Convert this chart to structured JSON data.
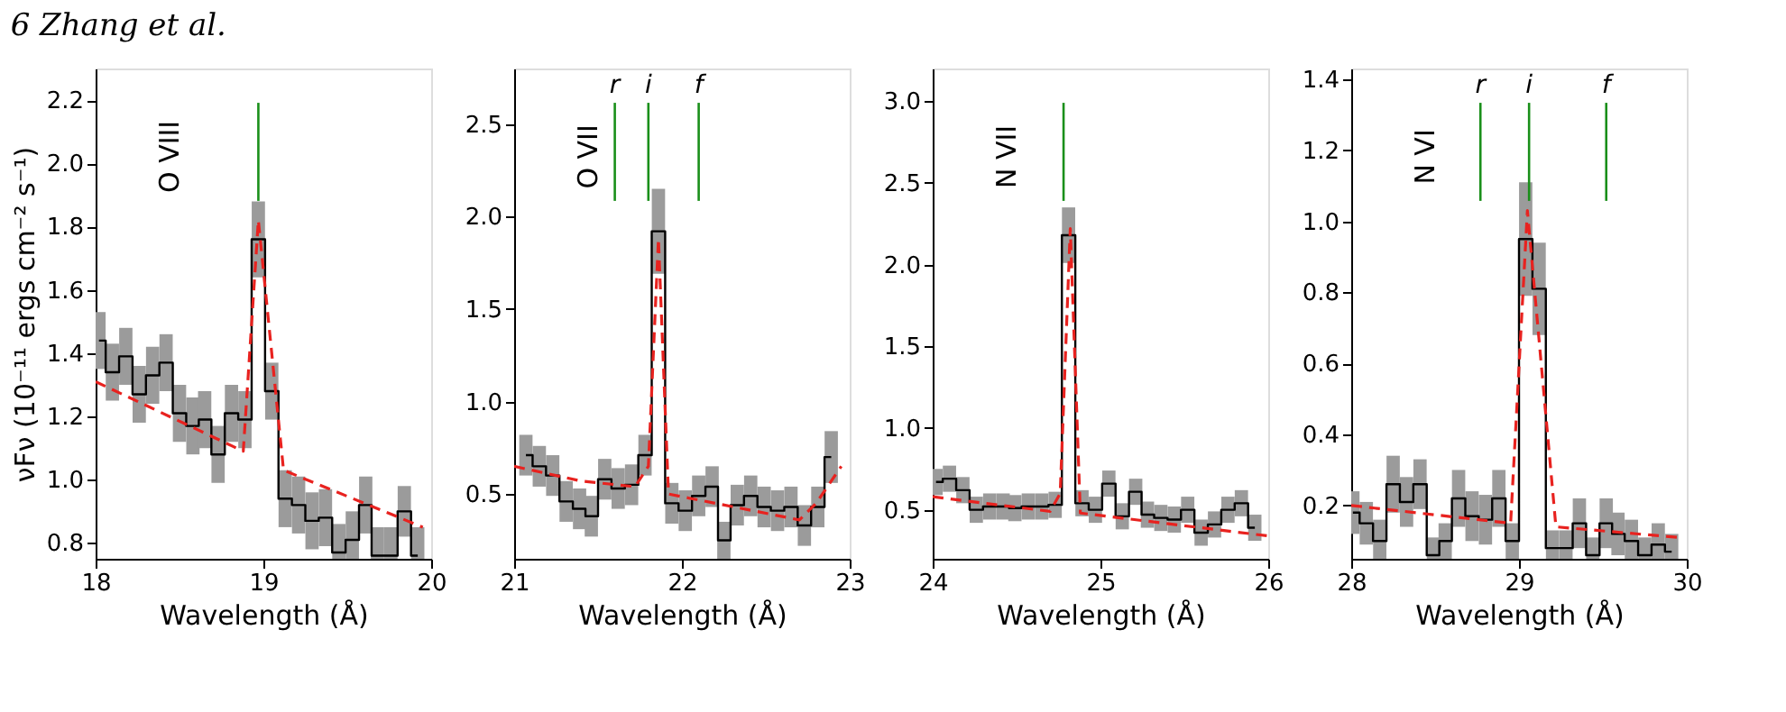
{
  "chart_data": [
    {
      "type": "step",
      "title": "6 Zhang et al.",
      "xlabel": "Wavelength (Å)",
      "ylabel": "νFν (10⁻¹¹ ergs cm⁻² s⁻¹)",
      "xlim": [
        18,
        20
      ],
      "xticks": [
        18,
        19,
        20
      ],
      "ylim": [
        0.75,
        2.3
      ],
      "yticks": [
        0.8,
        {
          "value": 1.0,
          "label": "1.0"
        },
        1.2,
        1.4,
        1.6,
        1.8,
        {
          "value": 2.0,
          "label": "2.0"
        },
        2.2
      ],
      "annotations": [
        "O VIII"
      ],
      "series": [
        {
          "type": "step",
          "color": "#000000",
          "x": [
            18.02,
            18.1,
            18.18,
            18.26,
            18.34,
            18.42,
            18.5,
            18.58,
            18.65,
            18.73,
            18.81,
            18.89,
            18.97,
            19.05,
            19.13,
            19.21,
            19.29,
            19.37,
            19.45,
            19.53,
            19.61,
            19.68,
            19.76,
            19.84,
            19.92
          ],
          "values": [
            1.44,
            1.34,
            1.39,
            1.27,
            1.33,
            1.37,
            1.21,
            1.17,
            1.19,
            1.08,
            1.21,
            1.19,
            1.76,
            1.28,
            0.94,
            0.92,
            0.87,
            0.88,
            0.77,
            0.81,
            0.92,
            0.76,
            0.76,
            0.9,
            0.76
          ],
          "errors": [
            0.09,
            0.09,
            0.09,
            0.09,
            0.09,
            0.09,
            0.09,
            0.09,
            0.09,
            0.09,
            0.09,
            0.09,
            0.12,
            0.09,
            0.09,
            0.09,
            0.09,
            0.09,
            0.09,
            0.09,
            0.09,
            0.09,
            0.09,
            0.08,
            0.09
          ]
        },
        {
          "type": "line",
          "color": "#e8221f",
          "line_style": "dashed",
          "x": [
            18.0,
            18.88,
            18.97,
            19.12,
            19.95
          ],
          "values": [
            1.31,
            1.09,
            1.82,
            1.03,
            0.85
          ]
        }
      ],
      "ref_lines": [
        {
          "axis": "x",
          "value": 18.97,
          "label": null,
          "color": "#1a8f1a"
        }
      ]
    },
    {
      "type": "step",
      "xlabel": "Wavelength (Å)",
      "xlim": [
        21,
        23
      ],
      "xticks": [
        21,
        22,
        23
      ],
      "ylim": [
        0.15,
        2.8
      ],
      "yticks": [
        0.5,
        {
          "value": 1.0,
          "label": "1.0"
        },
        1.5,
        {
          "value": 2.0,
          "label": "2.0"
        },
        2.5
      ],
      "annotations": [
        "O VII"
      ],
      "series": [
        {
          "type": "step",
          "color": "#000000",
          "x": [
            21.07,
            21.15,
            21.23,
            21.31,
            21.39,
            21.46,
            21.54,
            21.62,
            21.7,
            21.78,
            21.86,
            21.94,
            22.02,
            22.1,
            22.18,
            22.25,
            22.33,
            22.41,
            22.49,
            22.57,
            22.65,
            22.73,
            22.81,
            22.89
          ],
          "values": [
            0.71,
            0.65,
            0.6,
            0.46,
            0.42,
            0.38,
            0.58,
            0.53,
            0.55,
            0.71,
            1.92,
            0.45,
            0.41,
            0.49,
            0.54,
            0.25,
            0.44,
            0.49,
            0.43,
            0.41,
            0.43,
            0.33,
            0.43,
            0.7
          ],
          "errors": [
            0.11,
            0.11,
            0.11,
            0.11,
            0.11,
            0.11,
            0.11,
            0.11,
            0.11,
            0.11,
            0.23,
            0.11,
            0.11,
            0.11,
            0.11,
            0.1,
            0.11,
            0.11,
            0.11,
            0.11,
            0.11,
            0.11,
            0.11,
            0.14
          ]
        },
        {
          "type": "line",
          "color": "#e8221f",
          "line_style": "dashed",
          "x": [
            21.0,
            21.4,
            21.72,
            21.8,
            21.86,
            21.92,
            22.2,
            22.7,
            22.8,
            22.95
          ],
          "values": [
            0.65,
            0.57,
            0.54,
            0.65,
            1.88,
            0.5,
            0.45,
            0.36,
            0.45,
            0.65
          ]
        }
      ],
      "ref_lines": [
        {
          "axis": "x",
          "value": 21.6,
          "label": "r",
          "color": "#1a8f1a"
        },
        {
          "axis": "x",
          "value": 21.8,
          "label": "i",
          "color": "#1a8f1a"
        },
        {
          "axis": "x",
          "value": 22.1,
          "label": "f",
          "color": "#1a8f1a"
        }
      ]
    },
    {
      "type": "step",
      "xlabel": "Wavelength (Å)",
      "xlim": [
        24,
        26
      ],
      "xticks": [
        24,
        25,
        26
      ],
      "ylim": [
        0.2,
        3.2
      ],
      "yticks": [
        0.5,
        {
          "value": 1.0,
          "label": "1.0"
        },
        1.5,
        {
          "value": 2.0,
          "label": "2.0"
        },
        2.5,
        {
          "value": 3.0,
          "label": "3.0"
        }
      ],
      "annotations": [
        "N VII"
      ],
      "series": [
        {
          "type": "step",
          "color": "#000000",
          "x": [
            24.02,
            24.1,
            24.18,
            24.26,
            24.34,
            24.42,
            24.49,
            24.57,
            24.65,
            24.73,
            24.81,
            24.89,
            24.97,
            25.05,
            25.13,
            25.21,
            25.28,
            25.36,
            25.44,
            25.52,
            25.6,
            25.68,
            25.76,
            25.84,
            25.92
          ],
          "values": [
            0.67,
            0.69,
            0.62,
            0.5,
            0.52,
            0.52,
            0.51,
            0.52,
            0.52,
            0.53,
            2.18,
            0.54,
            0.5,
            0.66,
            0.46,
            0.61,
            0.47,
            0.45,
            0.44,
            0.5,
            0.36,
            0.41,
            0.5,
            0.54,
            0.39
          ],
          "errors": [
            0.08,
            0.08,
            0.08,
            0.08,
            0.08,
            0.08,
            0.08,
            0.08,
            0.08,
            0.08,
            0.17,
            0.08,
            0.08,
            0.08,
            0.08,
            0.08,
            0.08,
            0.08,
            0.08,
            0.08,
            0.08,
            0.08,
            0.08,
            0.08,
            0.08
          ]
        },
        {
          "type": "line",
          "color": "#e8221f",
          "line_style": "dashed",
          "x": [
            24.0,
            24.7,
            24.76,
            24.82,
            24.88,
            26.0
          ],
          "values": [
            0.58,
            0.49,
            0.6,
            2.22,
            0.48,
            0.34
          ]
        }
      ],
      "ref_lines": [
        {
          "axis": "x",
          "value": 24.78,
          "label": null,
          "color": "#1a8f1a"
        }
      ]
    },
    {
      "type": "step",
      "xlabel": "Wavelength (Å)",
      "xlim": [
        28,
        30
      ],
      "xticks": [
        28,
        29,
        30
      ],
      "ylim": [
        0.05,
        1.43
      ],
      "yticks": [
        0.2,
        0.4,
        0.6,
        0.8,
        {
          "value": 1.0,
          "label": "1.0"
        },
        1.2,
        1.4
      ],
      "annotations": [
        "N VI"
      ],
      "series": [
        {
          "type": "step",
          "color": "#000000",
          "x": [
            28.01,
            28.09,
            28.17,
            28.25,
            28.33,
            28.41,
            28.49,
            28.56,
            28.64,
            28.72,
            28.8,
            28.88,
            28.96,
            29.04,
            29.12,
            29.2,
            29.28,
            29.36,
            29.44,
            29.52,
            29.59,
            29.67,
            29.75,
            29.83,
            29.91
          ],
          "values": [
            0.18,
            0.15,
            0.1,
            0.26,
            0.21,
            0.26,
            0.06,
            0.1,
            0.22,
            0.17,
            0.16,
            0.22,
            0.1,
            0.95,
            0.81,
            0.08,
            0.08,
            0.15,
            0.06,
            0.15,
            0.12,
            0.1,
            0.06,
            0.09,
            0.07
          ],
          "errors": [
            0.06,
            0.06,
            0.06,
            0.08,
            0.07,
            0.07,
            0.05,
            0.05,
            0.08,
            0.07,
            0.07,
            0.08,
            0.05,
            0.16,
            0.13,
            0.05,
            0.05,
            0.07,
            0.05,
            0.07,
            0.06,
            0.06,
            0.05,
            0.06,
            0.05
          ]
        },
        {
          "type": "line",
          "color": "#e8221f",
          "line_style": "dashed",
          "x": [
            28.0,
            28.95,
            29.05,
            29.22,
            29.95
          ],
          "values": [
            0.2,
            0.15,
            1.03,
            0.14,
            0.11
          ]
        }
      ],
      "ref_lines": [
        {
          "axis": "x",
          "value": 28.77,
          "label": "r",
          "color": "#1a8f1a"
        },
        {
          "axis": "x",
          "value": 29.06,
          "label": "i",
          "color": "#1a8f1a"
        },
        {
          "axis": "x",
          "value": 29.52,
          "label": "f",
          "color": "#1a8f1a"
        }
      ]
    }
  ]
}
